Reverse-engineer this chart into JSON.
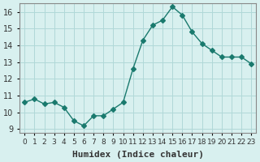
{
  "x": [
    0,
    1,
    2,
    3,
    4,
    5,
    6,
    7,
    8,
    9,
    10,
    11,
    12,
    13,
    14,
    15,
    16,
    17,
    18,
    19,
    20,
    21,
    22,
    23
  ],
  "y": [
    10.6,
    10.8,
    10.5,
    10.6,
    10.3,
    9.5,
    9.2,
    9.8,
    9.8,
    10.2,
    10.6,
    12.6,
    14.3,
    15.2,
    15.5,
    16.3,
    15.8,
    14.8,
    14.1,
    13.7,
    13.3,
    13.3,
    13.3,
    12.9
  ],
  "line_color": "#1a7a6e",
  "marker": "D",
  "marker_size": 3,
  "bg_color": "#d8f0ef",
  "grid_color": "#b0d8d8",
  "axis_color": "#888888",
  "xlabel": "Humidex (Indice chaleur)",
  "ylabel": "",
  "xlim": [
    -0.5,
    23.5
  ],
  "ylim": [
    8.8,
    16.5
  ],
  "yticks": [
    9,
    10,
    11,
    12,
    13,
    14,
    15,
    16
  ],
  "xtick_labels": [
    "0",
    "1",
    "2",
    "3",
    "4",
    "5",
    "6",
    "7",
    "8",
    "9",
    "10",
    "11",
    "12",
    "13",
    "14",
    "15",
    "16",
    "17",
    "18",
    "19",
    "20",
    "21",
    "22",
    "23"
  ],
  "xlabel_fontsize": 8,
  "tick_fontsize": 7,
  "tick_color": "#333333"
}
